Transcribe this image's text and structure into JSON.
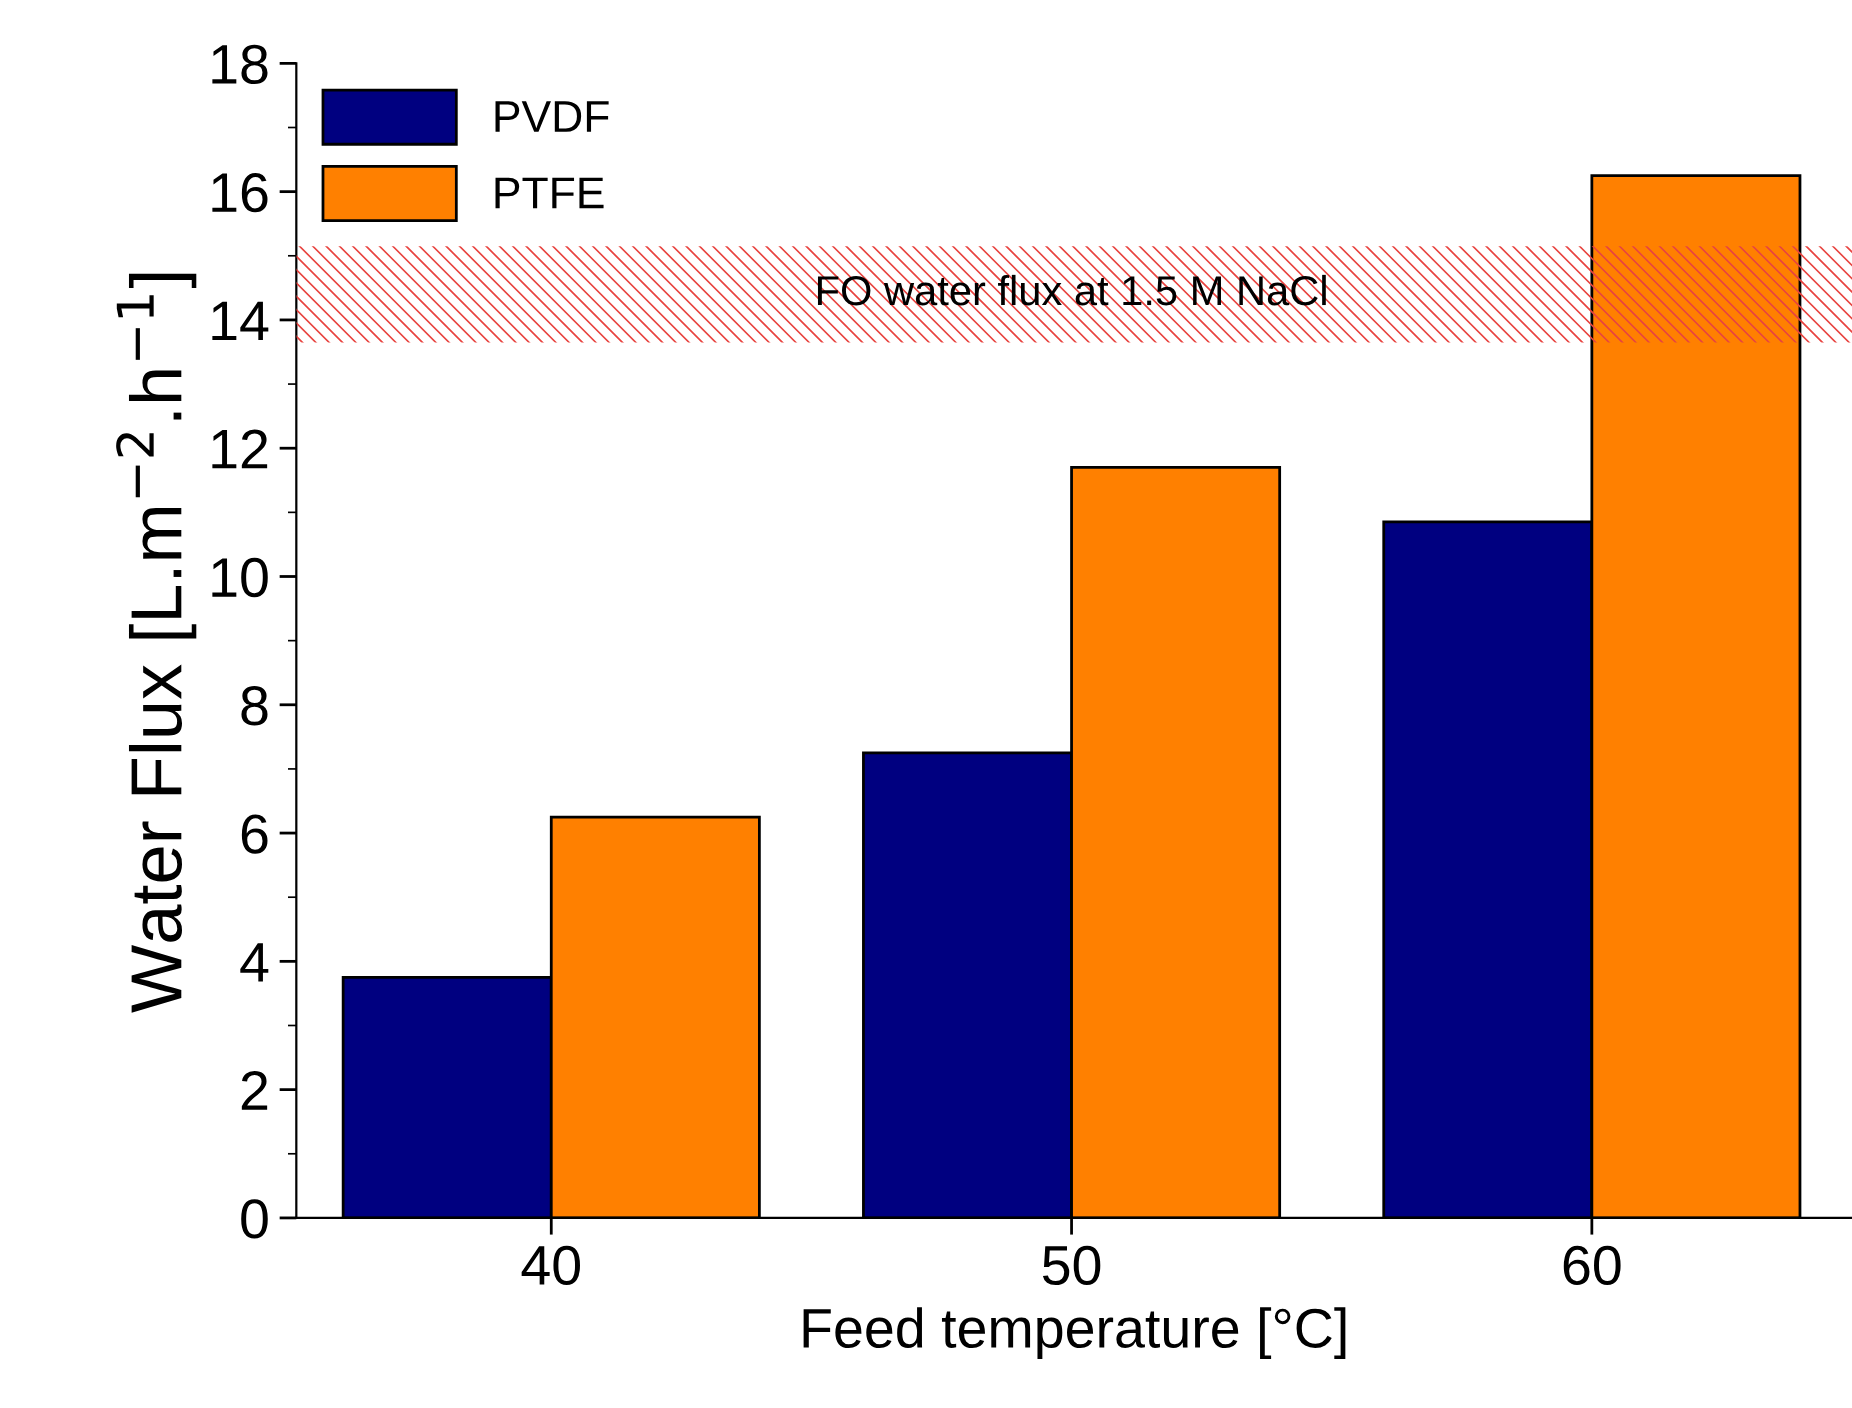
{
  "chart_data": {
    "type": "bar",
    "xlabel": "Feed temperature [°C]",
    "ylabel": "Water Flux [L.m$^{−2}$.h$^{−1}$]",
    "categories": [
      "40",
      "50",
      "60"
    ],
    "series": [
      {
        "name": "PVDF",
        "color": "#000080",
        "values": [
          3.75,
          7.25,
          10.85
        ]
      },
      {
        "name": "PTFE",
        "color": "#ff8000",
        "values": [
          6.25,
          11.7,
          16.25
        ]
      }
    ],
    "ylim": [
      0,
      18
    ],
    "yticks": [
      0,
      2,
      4,
      6,
      8,
      10,
      12,
      14,
      16,
      18
    ],
    "bands": [
      {
        "axis": "y",
        "from": 13.65,
        "to": 15.15,
        "label": "FO water flux at 1.5 M NaCl",
        "color": "#e8433f"
      }
    ],
    "grid": false,
    "legend": "top left"
  }
}
